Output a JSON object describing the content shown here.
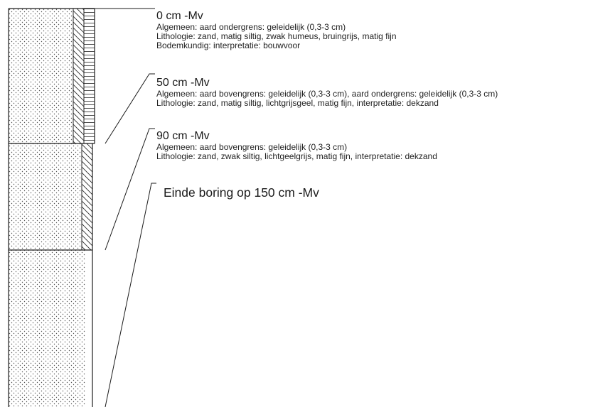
{
  "layers": [
    {
      "depth": "0 cm -Mv",
      "lines": [
        "Algemeen: aard ondergrens: geleidelijk (0,3-3 cm)",
        "Lithologie: zand, matig siltig, zwak humeus, bruingrijs, matig fijn",
        "Bodemkundig: interpretatie: bouwvoor"
      ]
    },
    {
      "depth": "50 cm -Mv",
      "lines": [
        "Algemeen: aard bovengrens: geleidelijk (0,3-3 cm), aard ondergrens: geleidelijk (0,3-3 cm)",
        "Lithologie: zand, matig siltig, lichtgrijsgeel, matig fijn, interpretatie: dekzand"
      ]
    },
    {
      "depth": "90 cm -Mv",
      "lines": [
        "Algemeen: aard bovengrens: geleidelijk (0,3-3 cm)",
        "Lithologie: zand, zwak siltig, lichtgeelgrijs, matig fijn, interpretatie: dekzand"
      ]
    }
  ],
  "end_label": "Einde boring op 150 cm -Mv",
  "colors": {
    "line": "#1a1a1a",
    "dots": "#555555"
  }
}
